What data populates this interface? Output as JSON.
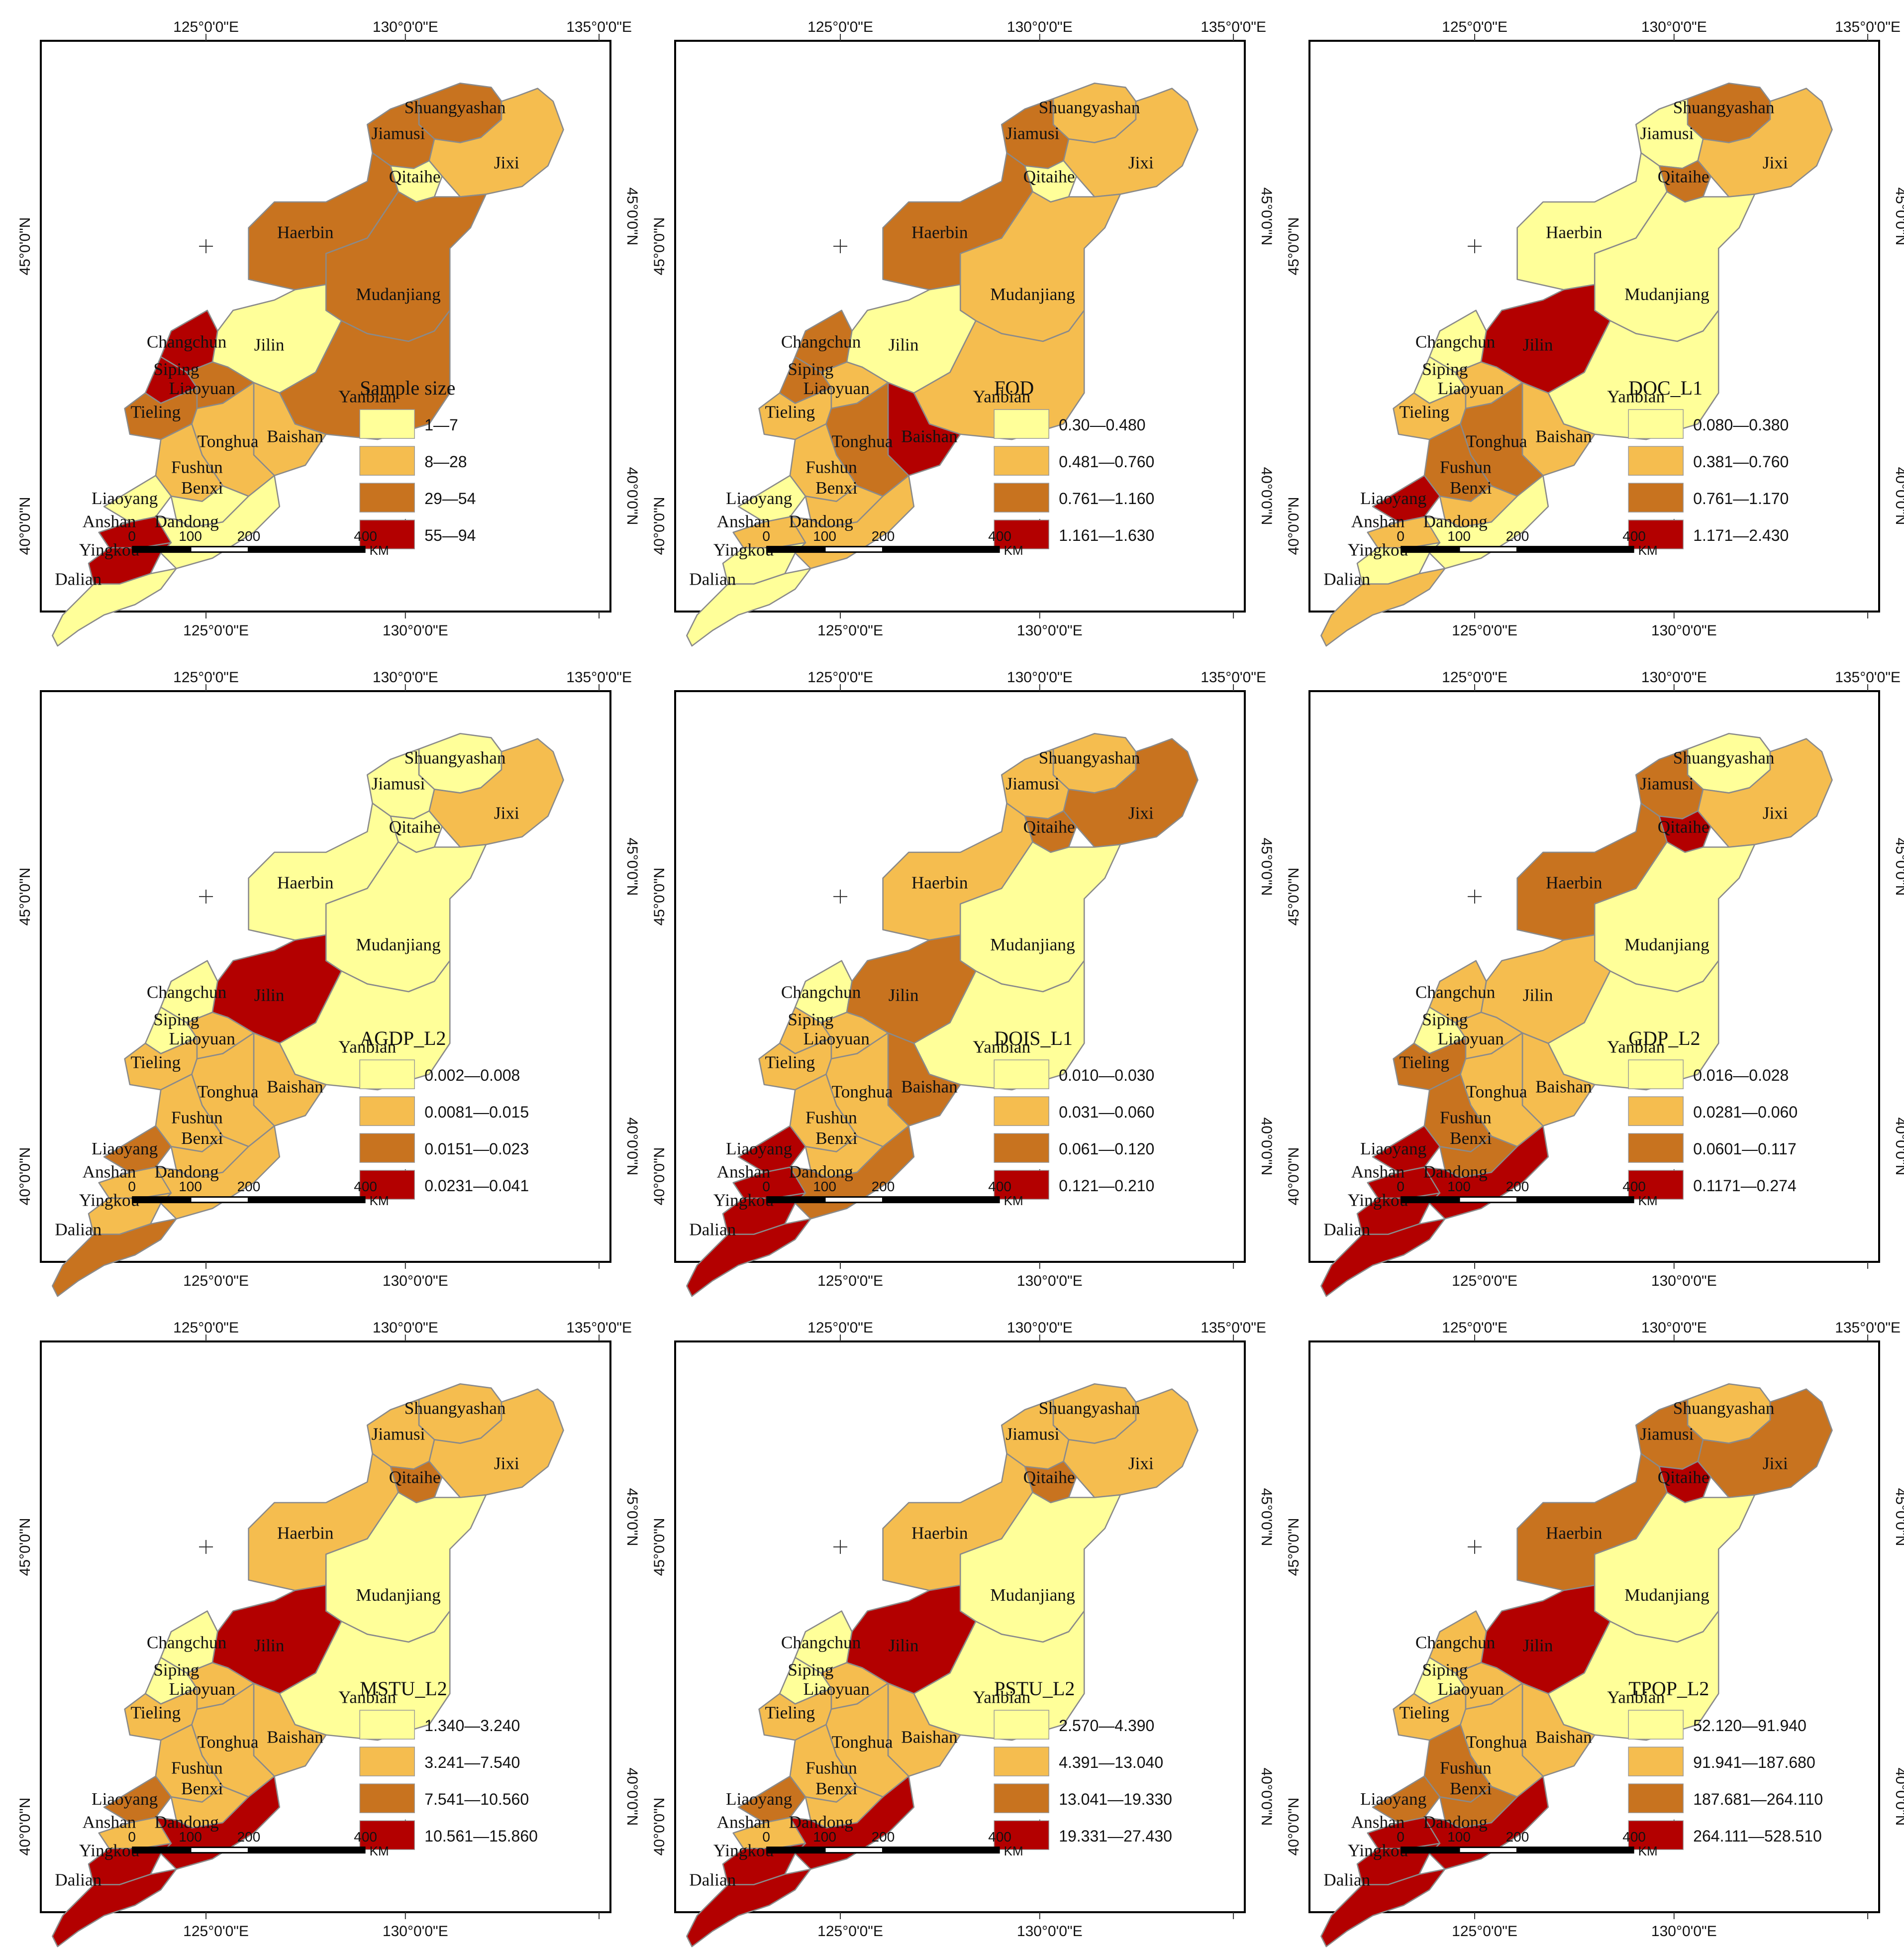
{
  "figure": {
    "colors": [
      "#ffff99",
      "#f5bd4f",
      "#c8731f",
      "#b30000"
    ],
    "longitude_labels": [
      "125°0'0\"E",
      "130°0'0\"E",
      "135°0'0\"E"
    ],
    "latitude_labels": [
      "45°0'0\"N",
      "40°0'0\"N"
    ],
    "scale_labels": [
      "0",
      "100",
      "200",
      "400"
    ],
    "scale_unit": "KM",
    "cities": [
      "Shuangyashan",
      "Jiamusi",
      "Qitaihe",
      "Jixi",
      "Haerbin",
      "Mudanjiang",
      "Changchun",
      "Jilin",
      "Siping",
      "Yanbian",
      "Liaoyuan",
      "Tieling",
      "Baishan",
      "Tonghua",
      "Fushun",
      "Liaoyang",
      "Benxi",
      "Anshan",
      "Dandong",
      "Yingkou",
      "Dalian"
    ]
  },
  "panels": [
    {
      "title": "Sample size",
      "legend": [
        "1—7",
        "8—28",
        "29—54",
        "55—94"
      ],
      "classes": {
        "Shuangyashan": 2,
        "Jiamusi": 2,
        "Qitaihe": 0,
        "Jixi": 1,
        "Haerbin": 2,
        "Mudanjiang": 2,
        "Changchun": 3,
        "Jilin": 0,
        "Siping": 3,
        "Yanbian": 2,
        "Liaoyuan": 2,
        "Tieling": 2,
        "Baishan": 1,
        "Tonghua": 1,
        "Fushun": 1,
        "Liaoyang": 0,
        "Benxi": 0,
        "Anshan": 3,
        "Dandong": 0,
        "Yingkou": 3,
        "Dalian": 0
      }
    },
    {
      "title": "FOD",
      "legend": [
        "0.30—0.480",
        "0.481—0.760",
        "0.761—1.160",
        "1.161—1.630"
      ],
      "classes": {
        "Shuangyashan": 1,
        "Jiamusi": 2,
        "Qitaihe": 0,
        "Jixi": 1,
        "Haerbin": 2,
        "Mudanjiang": 1,
        "Changchun": 2,
        "Jilin": 0,
        "Siping": 2,
        "Yanbian": 1,
        "Liaoyuan": 1,
        "Tieling": 1,
        "Baishan": 3,
        "Tonghua": 2,
        "Fushun": 1,
        "Liaoyang": 0,
        "Benxi": 1,
        "Anshan": 1,
        "Dandong": 1,
        "Yingkou": 0,
        "Dalian": 0
      }
    },
    {
      "title": "DOC_L1",
      "legend": [
        "0.080—0.380",
        "0.381—0.760",
        "0.761—1.170",
        "1.171—2.430"
      ],
      "classes": {
        "Shuangyashan": 2,
        "Jiamusi": 0,
        "Qitaihe": 2,
        "Jixi": 1,
        "Haerbin": 0,
        "Mudanjiang": 0,
        "Changchun": 0,
        "Jilin": 3,
        "Siping": 0,
        "Yanbian": 0,
        "Liaoyuan": 1,
        "Tieling": 1,
        "Baishan": 1,
        "Tonghua": 2,
        "Fushun": 2,
        "Liaoyang": 3,
        "Benxi": 1,
        "Anshan": 1,
        "Dandong": 0,
        "Yingkou": 0,
        "Dalian": 1
      }
    },
    {
      "title": "AGDP_L2",
      "legend": [
        "0.002—0.008",
        "0.0081—0.015",
        "0.0151—0.023",
        "0.0231—0.041"
      ],
      "classes": {
        "Shuangyashan": 0,
        "Jiamusi": 0,
        "Qitaihe": 0,
        "Jixi": 1,
        "Haerbin": 0,
        "Mudanjiang": 0,
        "Changchun": 0,
        "Jilin": 3,
        "Siping": 0,
        "Yanbian": 0,
        "Liaoyuan": 1,
        "Tieling": 1,
        "Baishan": 1,
        "Tonghua": 1,
        "Fushun": 1,
        "Liaoyang": 2,
        "Benxi": 1,
        "Anshan": 1,
        "Dandong": 1,
        "Yingkou": 1,
        "Dalian": 2
      }
    },
    {
      "title": "DOIS_L1",
      "legend": [
        "0.010—0.030",
        "0.031—0.060",
        "0.061—0.120",
        "0.121—0.210"
      ],
      "classes": {
        "Shuangyashan": 1,
        "Jiamusi": 1,
        "Qitaihe": 2,
        "Jixi": 2,
        "Haerbin": 1,
        "Mudanjiang": 0,
        "Changchun": 0,
        "Jilin": 2,
        "Siping": 1,
        "Yanbian": 0,
        "Liaoyuan": 1,
        "Tieling": 1,
        "Baishan": 2,
        "Tonghua": 1,
        "Fushun": 1,
        "Liaoyang": 3,
        "Benxi": 1,
        "Anshan": 3,
        "Dandong": 2,
        "Yingkou": 3,
        "Dalian": 3
      }
    },
    {
      "title": "GDP_L2",
      "legend": [
        "0.016—0.028",
        "0.0281—0.060",
        "0.0601—0.117",
        "0.1171—0.274"
      ],
      "classes": {
        "Shuangyashan": 0,
        "Jiamusi": 2,
        "Qitaihe": 3,
        "Jixi": 1,
        "Haerbin": 2,
        "Mudanjiang": 0,
        "Changchun": 1,
        "Jilin": 1,
        "Siping": 0,
        "Yanbian": 0,
        "Liaoyuan": 1,
        "Tieling": 2,
        "Baishan": 1,
        "Tonghua": 1,
        "Fushun": 2,
        "Liaoyang": 3,
        "Benxi": 2,
        "Anshan": 3,
        "Dandong": 3,
        "Yingkou": 3,
        "Dalian": 3
      }
    },
    {
      "title": "MSTU_L2",
      "legend": [
        "1.340—3.240",
        "3.241—7.540",
        "7.541—10.560",
        "10.561—15.860"
      ],
      "classes": {
        "Shuangyashan": 1,
        "Jiamusi": 1,
        "Qitaihe": 2,
        "Jixi": 1,
        "Haerbin": 1,
        "Mudanjiang": 0,
        "Changchun": 0,
        "Jilin": 3,
        "Siping": 0,
        "Yanbian": 0,
        "Liaoyuan": 1,
        "Tieling": 1,
        "Baishan": 1,
        "Tonghua": 1,
        "Fushun": 1,
        "Liaoyang": 2,
        "Benxi": 1,
        "Anshan": 1,
        "Dandong": 3,
        "Yingkou": 3,
        "Dalian": 3
      }
    },
    {
      "title": "PSTU_L2",
      "legend": [
        "2.570—4.390",
        "4.391—13.040",
        "13.041—19.330",
        "19.331—27.430"
      ],
      "classes": {
        "Shuangyashan": 1,
        "Jiamusi": 1,
        "Qitaihe": 2,
        "Jixi": 1,
        "Haerbin": 1,
        "Mudanjiang": 0,
        "Changchun": 0,
        "Jilin": 3,
        "Siping": 0,
        "Yanbian": 0,
        "Liaoyuan": 1,
        "Tieling": 1,
        "Baishan": 1,
        "Tonghua": 1,
        "Fushun": 1,
        "Liaoyang": 2,
        "Benxi": 1,
        "Anshan": 1,
        "Dandong": 3,
        "Yingkou": 3,
        "Dalian": 3
      }
    },
    {
      "title": "TPOP_L2",
      "legend": [
        "52.120—91.940",
        "91.941—187.680",
        "187.681—264.110",
        "264.111—528.510"
      ],
      "classes": {
        "Shuangyashan": 1,
        "Jiamusi": 2,
        "Qitaihe": 3,
        "Jixi": 2,
        "Haerbin": 2,
        "Mudanjiang": 0,
        "Changchun": 1,
        "Jilin": 3,
        "Siping": 0,
        "Yanbian": 0,
        "Liaoyuan": 1,
        "Tieling": 1,
        "Baishan": 1,
        "Tonghua": 1,
        "Fushun": 2,
        "Liaoyang": 2,
        "Benxi": 2,
        "Anshan": 3,
        "Dandong": 3,
        "Yingkou": 3,
        "Dalian": 3
      }
    }
  ]
}
